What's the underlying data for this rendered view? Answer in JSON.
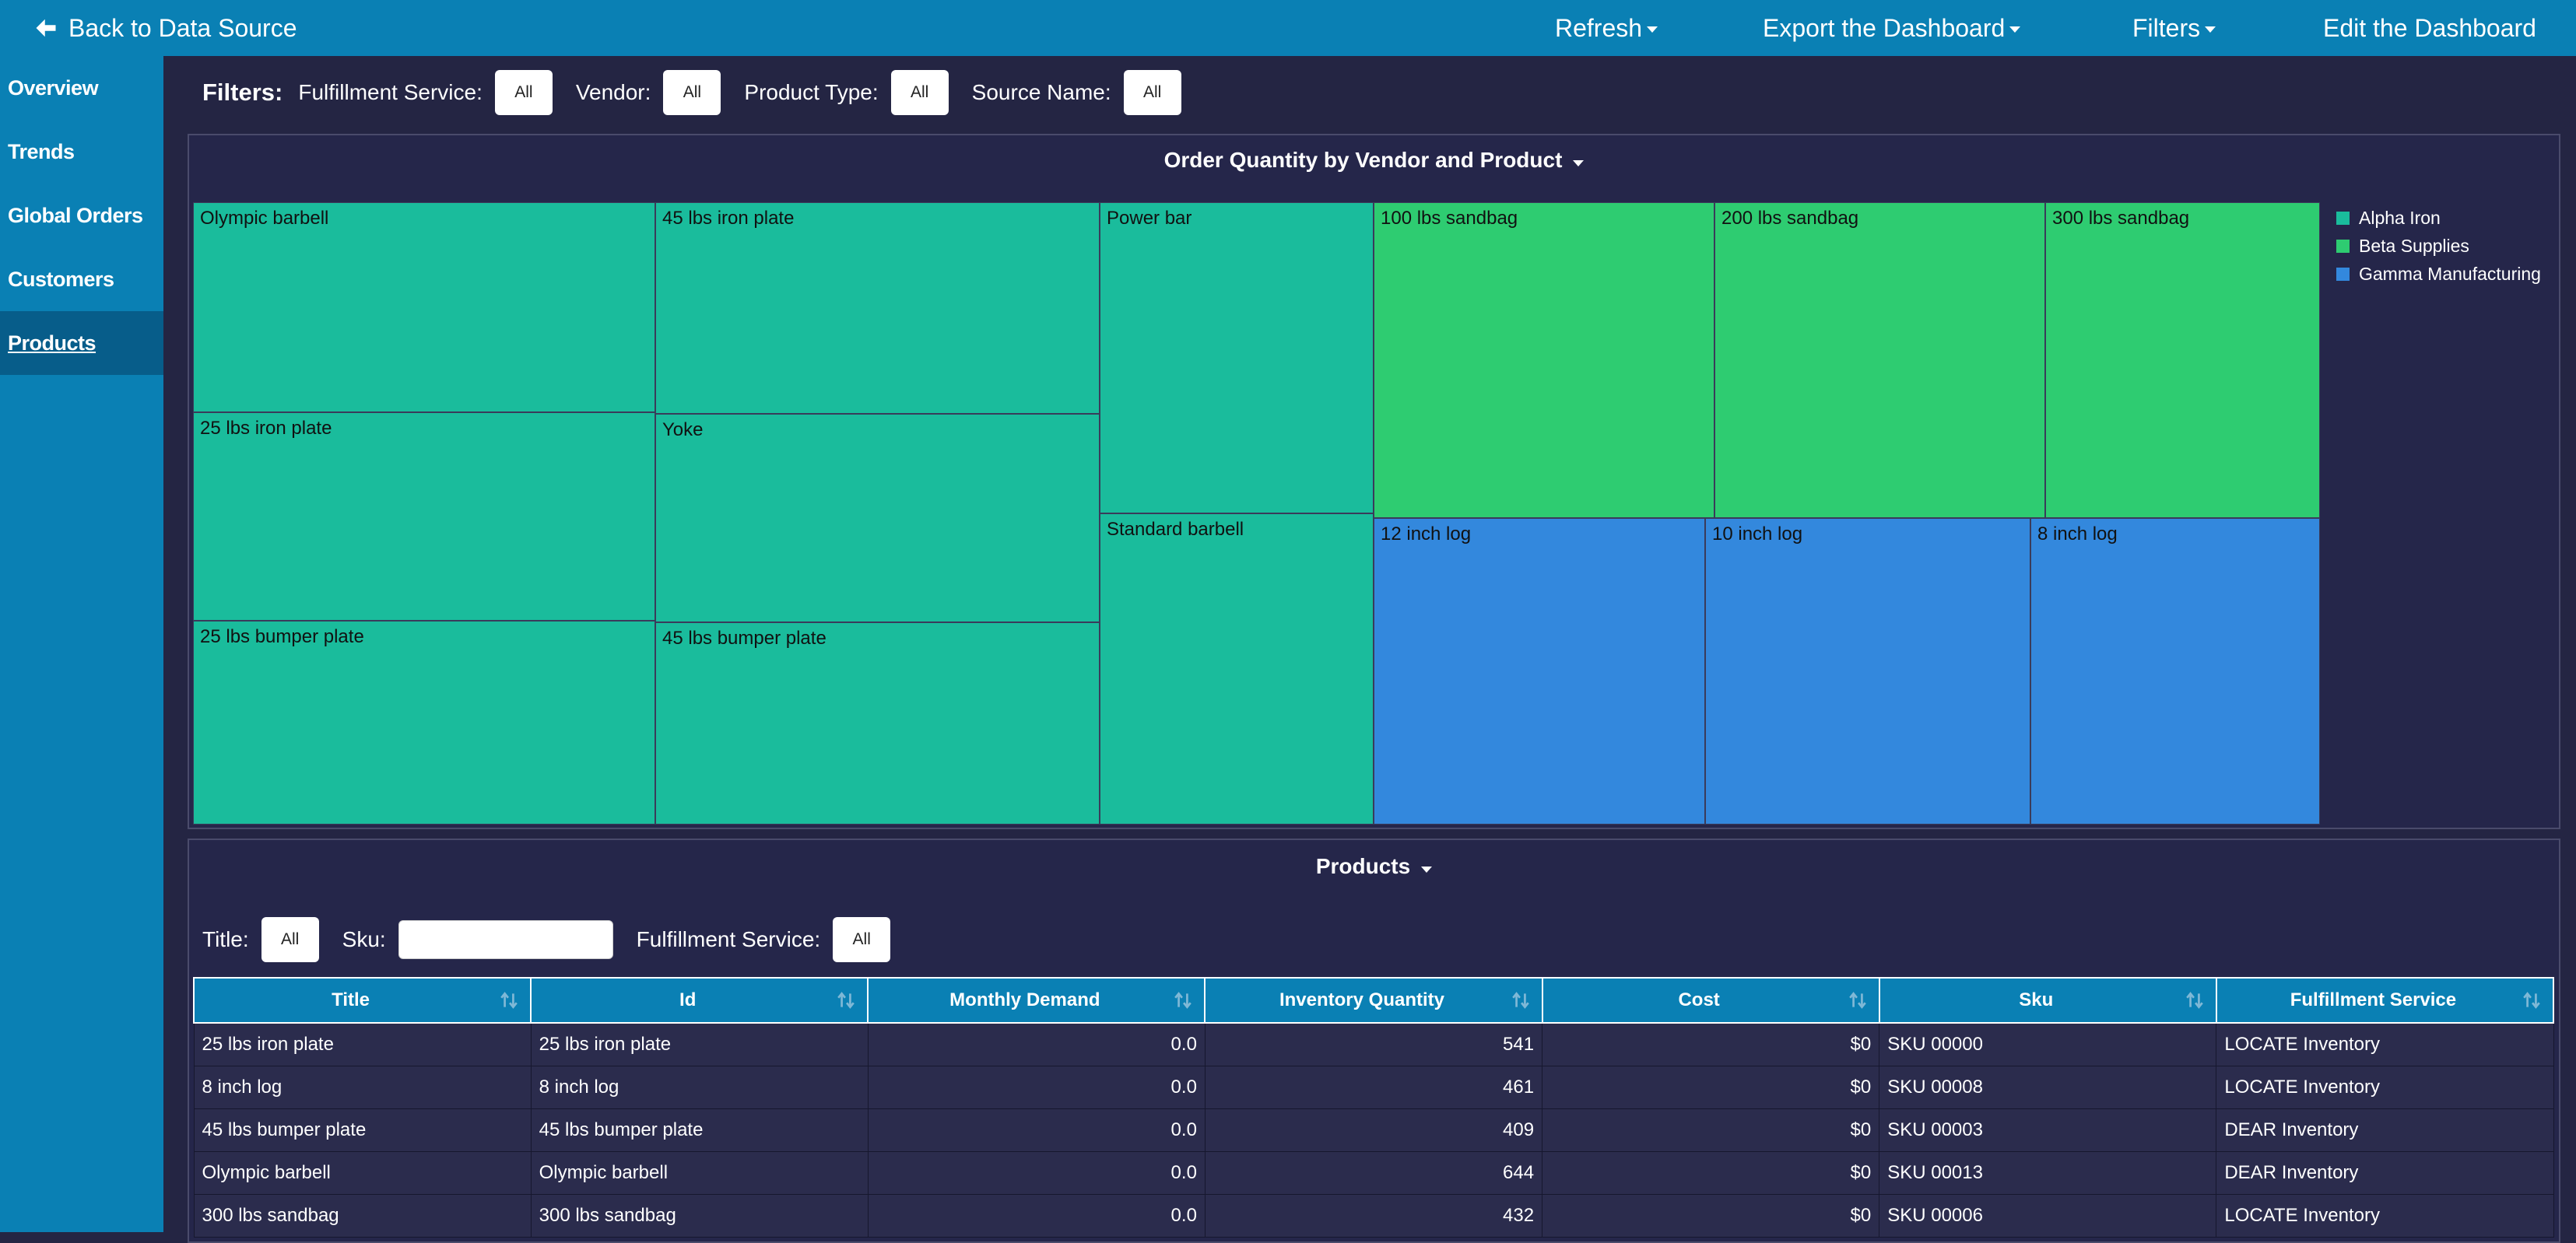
{
  "topbar": {
    "back_label": "Back to Data Source",
    "refresh": "Refresh",
    "export": "Export the Dashboard",
    "filters": "Filters",
    "edit": "Edit the Dashboard"
  },
  "sidebar": {
    "items": [
      {
        "label": "Overview"
      },
      {
        "label": "Trends"
      },
      {
        "label": "Global Orders"
      },
      {
        "label": "Customers"
      },
      {
        "label": "Products",
        "active": true
      }
    ]
  },
  "filters": {
    "title": "Filters:",
    "fulfillment_label": "Fulfillment Service:",
    "fulfillment_value": "All",
    "vendor_label": "Vendor:",
    "vendor_value": "All",
    "product_type_label": "Product Type:",
    "product_type_value": "All",
    "source_name_label": "Source Name:",
    "source_name_value": "All"
  },
  "treemap_panel": {
    "title": "Order Quantity by Vendor and Product"
  },
  "chart_data": {
    "type": "treemap",
    "title": "Order Quantity by Vendor and Product",
    "legend_position": "right",
    "series": [
      {
        "name": "Alpha Iron",
        "color": "#1abc9c",
        "items": [
          "Olympic barbell",
          "25 lbs iron plate",
          "25 lbs bumper plate",
          "45 lbs iron plate",
          "Yoke",
          "45 lbs bumper plate",
          "Power bar",
          "Standard barbell"
        ]
      },
      {
        "name": "Beta Supplies",
        "color": "#2ecc71",
        "items": [
          "100 lbs sandbag",
          "200 lbs sandbag",
          "300 lbs sandbag"
        ]
      },
      {
        "name": "Gamma Manufacturing",
        "color": "#3388dd",
        "items": [
          "12 inch log",
          "10 inch log",
          "8 inch log"
        ]
      }
    ]
  },
  "products_panel": {
    "title": "Products",
    "title_filter_label": "Title:",
    "title_filter_value": "All",
    "sku_label": "Sku:",
    "sku_value": "",
    "fulfillment_label": "Fulfillment Service:",
    "fulfillment_value": "All",
    "columns": [
      "Title",
      "Id",
      "Monthly Demand",
      "Inventory Quantity",
      "Cost",
      "Sku",
      "Fulfillment Service"
    ],
    "rows": [
      [
        "25 lbs iron plate",
        "25 lbs iron plate",
        "0.0",
        "541",
        "$0",
        "SKU 00000",
        "LOCATE Inventory"
      ],
      [
        "8 inch log",
        "8 inch log",
        "0.0",
        "461",
        "$0",
        "SKU 00008",
        "LOCATE Inventory"
      ],
      [
        "45 lbs bumper plate",
        "45 lbs bumper plate",
        "0.0",
        "409",
        "$0",
        "SKU 00003",
        "DEAR Inventory"
      ],
      [
        "Olympic barbell",
        "Olympic barbell",
        "0.0",
        "644",
        "$0",
        "SKU 00013",
        "DEAR Inventory"
      ],
      [
        "300 lbs sandbag",
        "300 lbs sandbag",
        "0.0",
        "432",
        "$0",
        "SKU 00006",
        "LOCATE Inventory"
      ]
    ]
  }
}
